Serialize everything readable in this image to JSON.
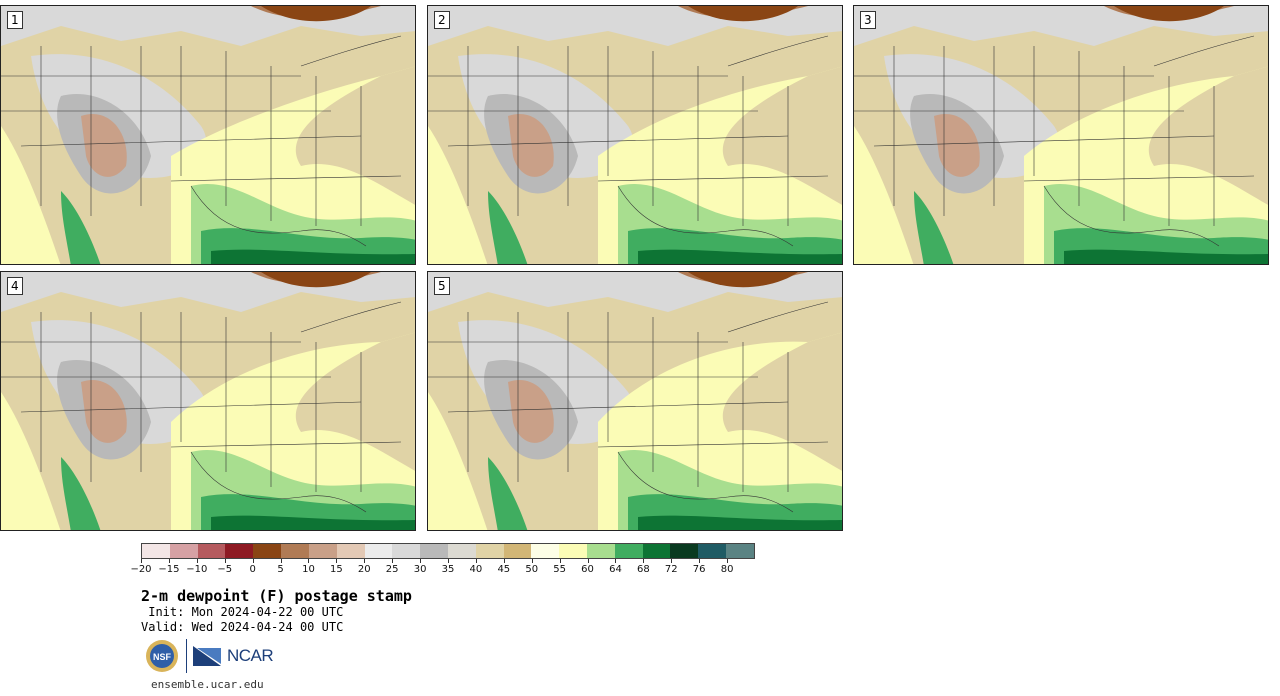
{
  "panels": [
    {
      "label": "1"
    },
    {
      "label": "2"
    },
    {
      "label": "3"
    },
    {
      "label": "4"
    },
    {
      "label": "5"
    }
  ],
  "colorbar": {
    "colors": [
      "#f3e6e6",
      "#d6a1a4",
      "#b55a5e",
      "#8e1a23",
      "#8a4514",
      "#b07b55",
      "#c9a088",
      "#e3c9b5",
      "#ececec",
      "#d9d9d9",
      "#b9b9b9",
      "#dcdad2",
      "#e0d3a6",
      "#d2b676",
      "#fdfee6",
      "#fbfcb6",
      "#a8de8f",
      "#40ad60",
      "#0d7434",
      "#0a3a20",
      "#1f5b64",
      "#5a8383"
    ],
    "tick_labels": [
      "−20",
      "−15",
      "−10",
      "−5",
      "0",
      "5",
      "10",
      "15",
      "20",
      "25",
      "30",
      "35",
      "40",
      "45",
      "50",
      "55",
      "60",
      "64",
      "68",
      "72",
      "76",
      "80"
    ]
  },
  "title": "2-m dewpoint (F) postage stamp",
  "init": " Init: Mon 2024-04-22 00 UTC",
  "valid": "Valid: Wed 2024-04-24 00 UTC",
  "logos": {
    "nsf": "NSF",
    "ncar": "NCAR"
  },
  "url": "ensemble.ucar.edu"
}
